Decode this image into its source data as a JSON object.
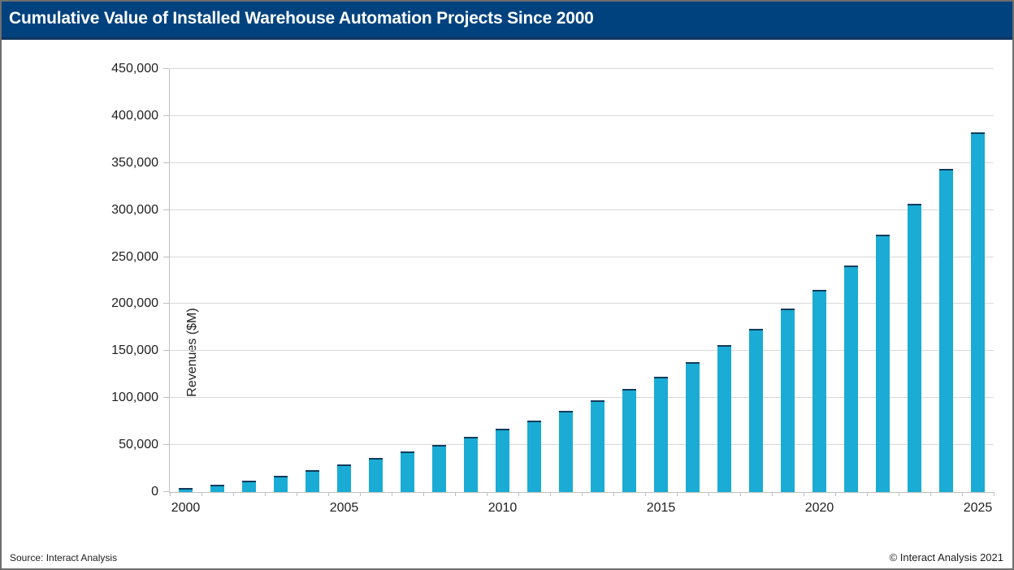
{
  "header": {
    "title": "Cumulative Value of Installed Warehouse Automation Projects Since 2000"
  },
  "footer": {
    "source": "Source: Interact Analysis",
    "copyright": "© Interact Analysis 2021"
  },
  "colors": {
    "header_background": "#00427E",
    "bar_fill": "#1AACD4",
    "bar_top_edge": "#123C5C",
    "gridline": "#D9D9D9",
    "axis_line": "#BFBFBF",
    "text": "#1F1F1F"
  },
  "chart_data": {
    "type": "bar",
    "title": "Cumulative Value of Installed Warehouse Automation Projects Since 2000",
    "xlabel": "",
    "ylabel": "Revenues ($M)",
    "ylim": [
      0,
      450000
    ],
    "ytick_interval": 50000,
    "grid": true,
    "legend_position": "none",
    "categories": [
      2000,
      2001,
      2002,
      2003,
      2004,
      2005,
      2006,
      2007,
      2008,
      2009,
      2010,
      2011,
      2012,
      2013,
      2014,
      2015,
      2016,
      2017,
      2018,
      2019,
      2020,
      2021,
      2022,
      2023,
      2024,
      2025
    ],
    "values": [
      4000,
      8000,
      12500,
      17500,
      23000,
      29000,
      36000,
      43000,
      50500,
      59000,
      67500,
      76000,
      86000,
      98000,
      109500,
      123000,
      138500,
      156000,
      174000,
      195500,
      215000,
      241000,
      273500,
      306500,
      343500,
      383000
    ],
    "x_tick_positions": [
      0,
      5,
      10,
      15,
      20,
      25
    ],
    "x_tick_labels": [
      "2000",
      "2005",
      "2010",
      "2015",
      "2020",
      "2025"
    ]
  }
}
